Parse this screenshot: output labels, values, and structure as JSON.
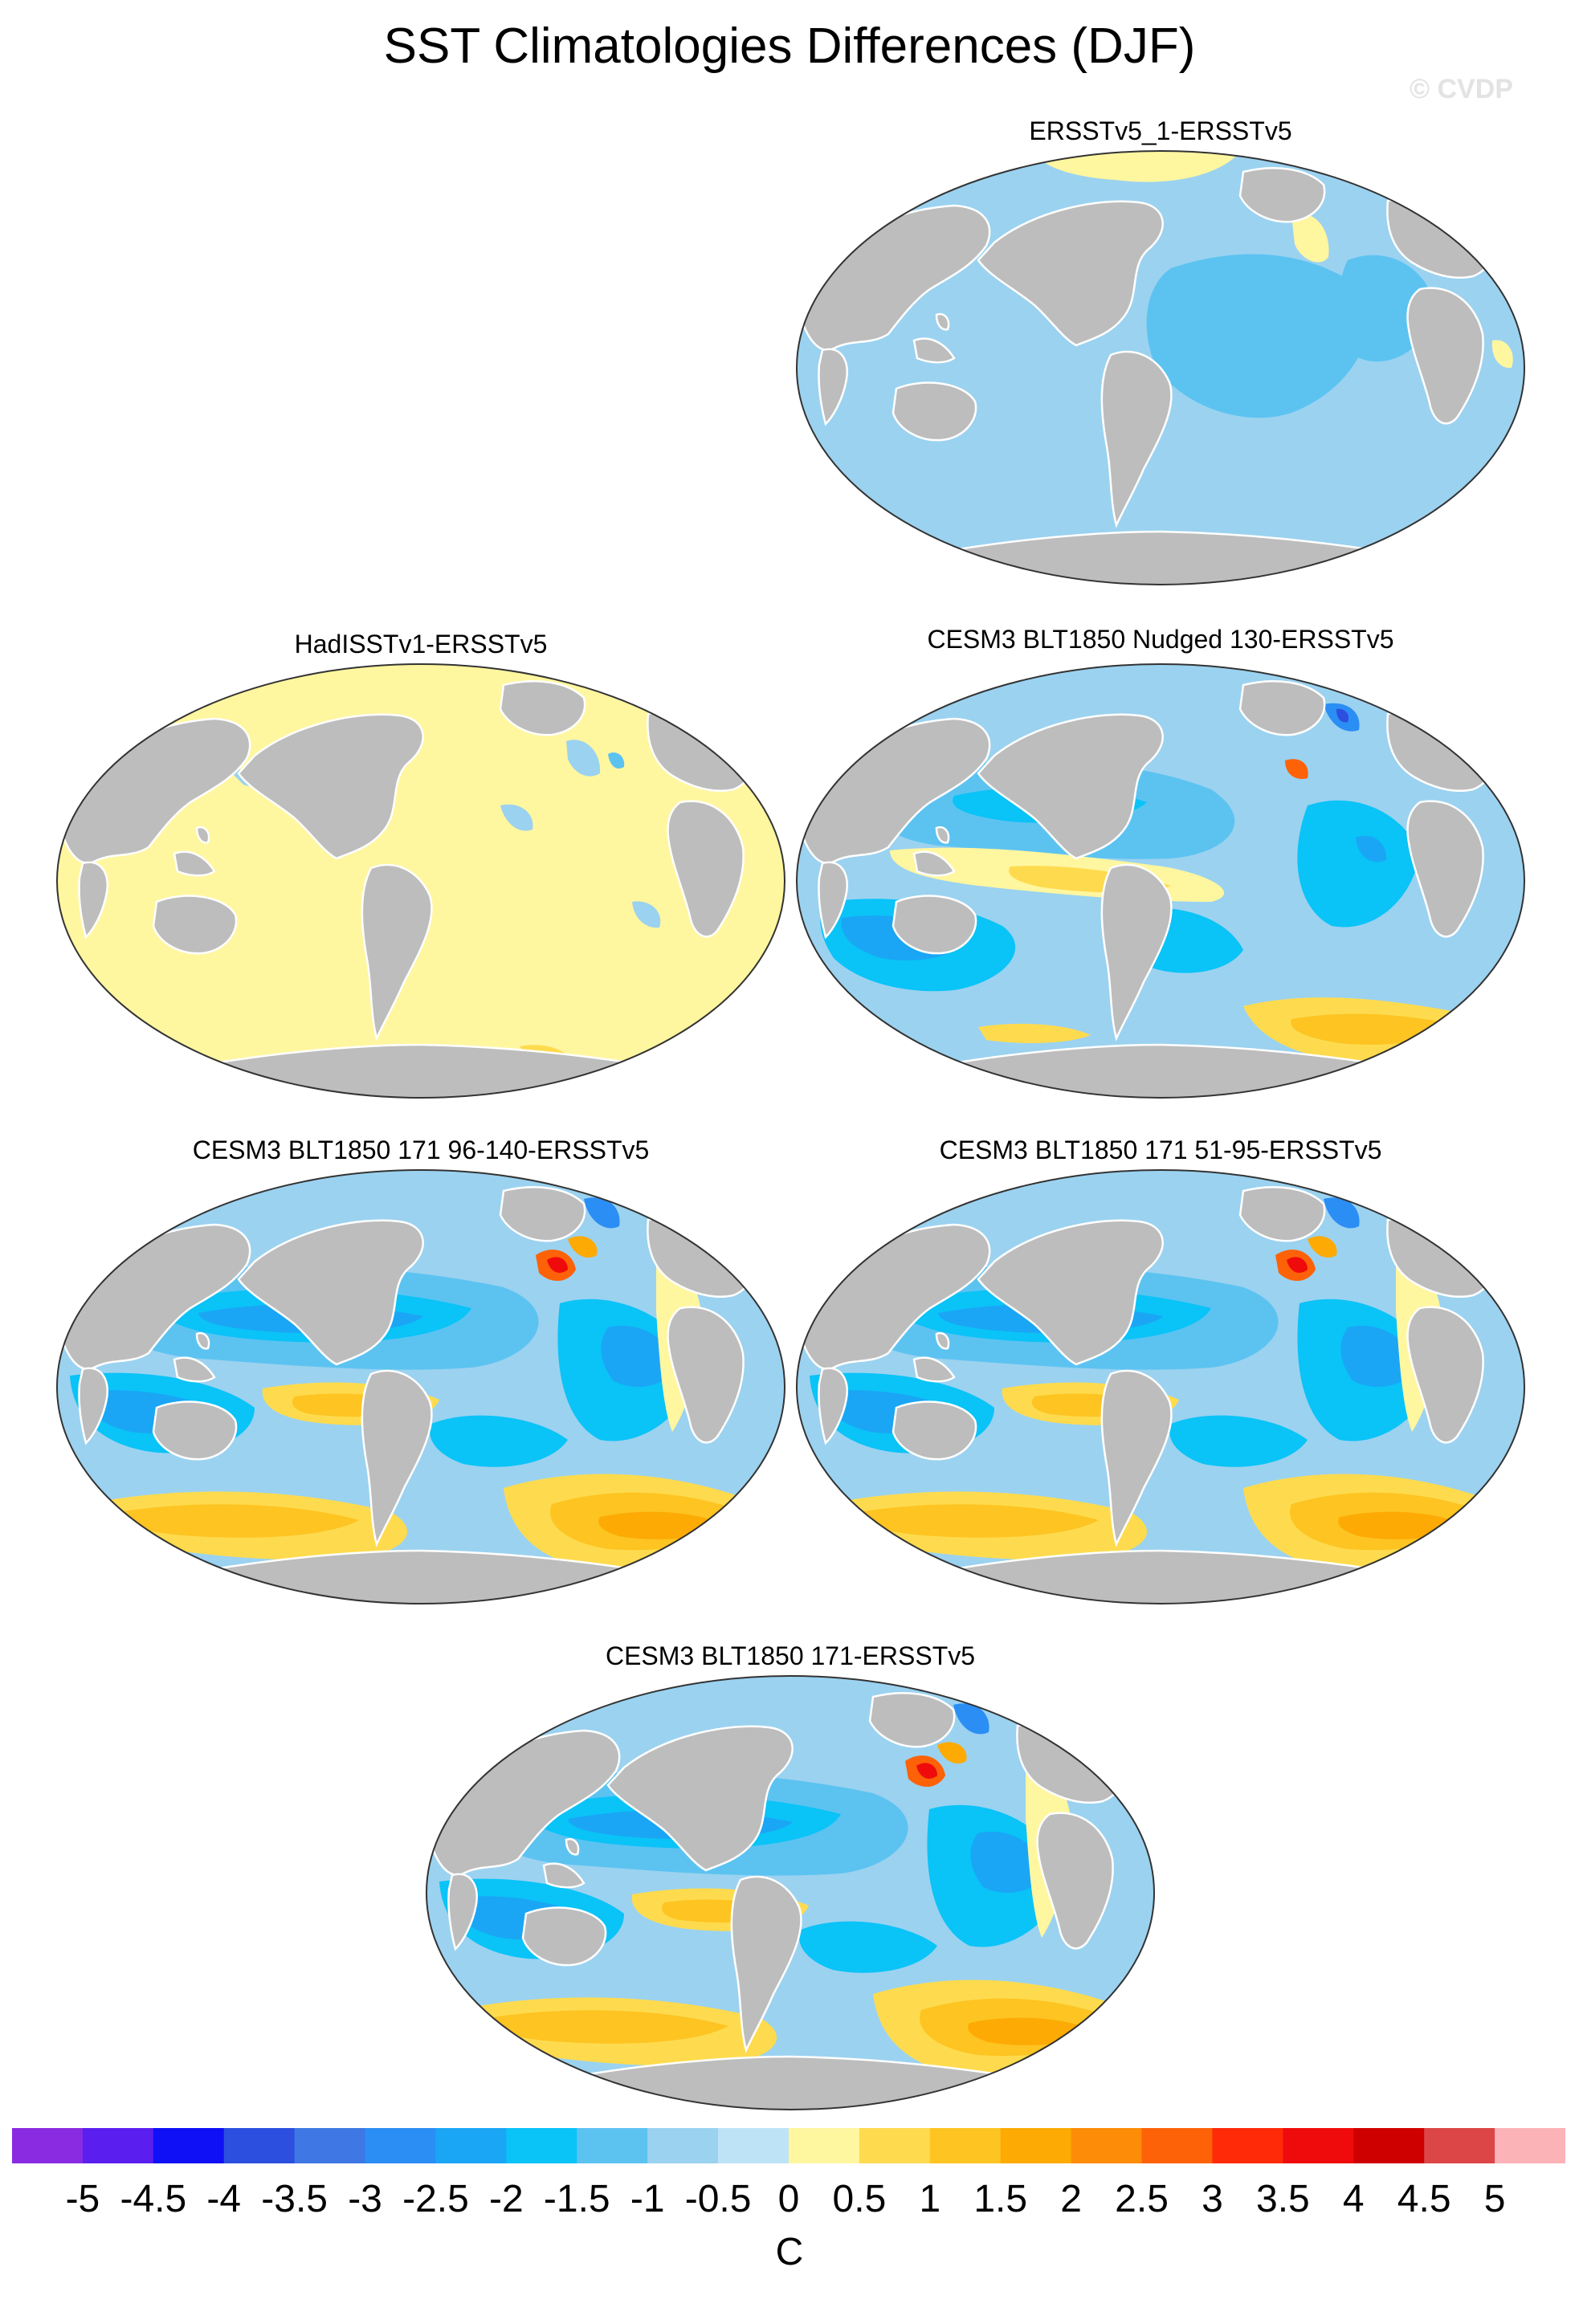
{
  "figure": {
    "title": "SST Climatologies Differences (DJF)",
    "watermark": "© CVDP"
  },
  "panels": [
    {
      "id": "ersst-1",
      "title": "ERSSTv5_1-ERSSTv5",
      "pattern": "ersst1"
    },
    {
      "id": "hadisst",
      "title": "HadISSTv1-ERSSTv5",
      "pattern": "hadisst"
    },
    {
      "id": "nudged130",
      "title": "CESM3 BLT1850 Nudged 130-ERSSTv5",
      "pattern": "nudged"
    },
    {
      "id": "blt171-96-140",
      "title": "CESM3 BLT1850 171 96-140-ERSSTv5",
      "pattern": "model"
    },
    {
      "id": "blt171-51-95",
      "title": "CESM3 BLT1850 171 51-95-ERSSTv5",
      "pattern": "model"
    },
    {
      "id": "blt171",
      "title": "CESM3 BLT1850 171-ERSSTv5",
      "pattern": "model"
    }
  ],
  "colorbar": {
    "unit": "C",
    "tick_labels": [
      "-5",
      "-4.5",
      "-4",
      "-3.5",
      "-3",
      "-2.5",
      "-2",
      "-1.5",
      "-1",
      "-0.5",
      "0",
      "0.5",
      "1",
      "1.5",
      "2",
      "2.5",
      "3",
      "3.5",
      "4",
      "4.5",
      "5"
    ],
    "colors": [
      "#8a2be2",
      "#5a1fef",
      "#0f10f5",
      "#2c4fe0",
      "#3f78e4",
      "#2b8ef4",
      "#1aa6f5",
      "#0ac3f7",
      "#5cc3f1",
      "#9bd2f0",
      "#bfe3f6",
      "#fff6a0",
      "#fedb4e",
      "#fdc422",
      "#fdaa05",
      "#fd8c08",
      "#fd6208",
      "#fe2a08",
      "#ef0b0b",
      "#cf0000",
      "#dc4646",
      "#fbb3b7"
    ]
  }
}
